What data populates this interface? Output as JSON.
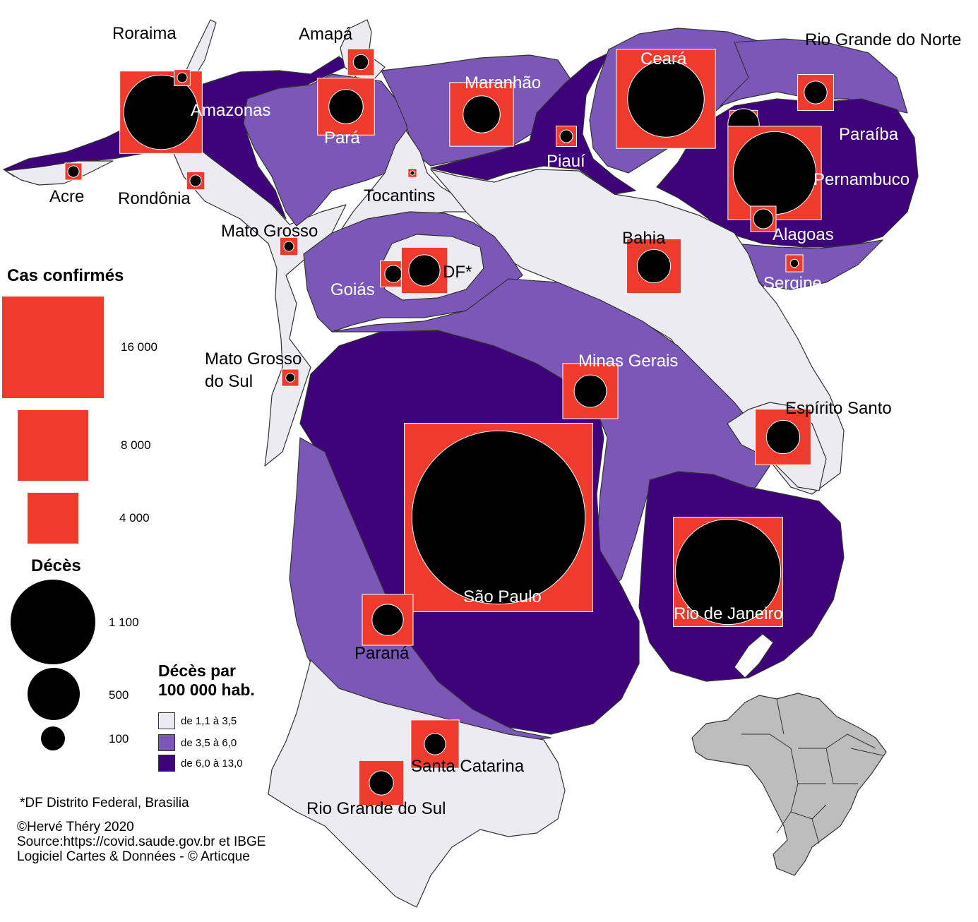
{
  "colors": {
    "low": "#ecebf2",
    "mid": "#7b58b8",
    "high": "#3e027a",
    "case_square": "#ee3b2d",
    "death_circle": "#000000",
    "minimap": "#bdbdbd"
  },
  "map": {
    "states": [
      {
        "id": "amazonas",
        "name": "Amazonas",
        "class": "high",
        "label_color": "light"
      },
      {
        "id": "roraima",
        "name": "Roraima",
        "class": "low",
        "label_color": "dark"
      },
      {
        "id": "acre",
        "name": "Acre",
        "class": "low",
        "label_color": "dark"
      },
      {
        "id": "rondonia",
        "name": "Rondônia",
        "class": "low",
        "label_color": "dark"
      },
      {
        "id": "amapa",
        "name": "Amapá",
        "class": "low",
        "label_color": "dark"
      },
      {
        "id": "para",
        "name": "Pará",
        "class": "mid",
        "label_color": "light"
      },
      {
        "id": "maranhao",
        "name": "Maranhão",
        "class": "mid",
        "label_color": "light"
      },
      {
        "id": "piaui",
        "name": "Piauí",
        "class": "high",
        "label_color": "light"
      },
      {
        "id": "ceara",
        "name": "Ceará",
        "class": "mid",
        "label_color": "light"
      },
      {
        "id": "rio-grande-do-norte",
        "name": "Rio Grande do Norte",
        "class": "mid",
        "label_color": "dark"
      },
      {
        "id": "paraiba",
        "name": "Paraíba",
        "class": "high",
        "label_color": "light"
      },
      {
        "id": "pernambuco",
        "name": "Pernambuco",
        "class": "high",
        "label_color": "light"
      },
      {
        "id": "alagoas",
        "name": "Alagoas",
        "class": "high",
        "label_color": "light"
      },
      {
        "id": "sergipe",
        "name": "Sergipe",
        "class": "mid",
        "label_color": "light"
      },
      {
        "id": "tocantins",
        "name": "Tocantins",
        "class": "low",
        "label_color": "dark"
      },
      {
        "id": "bahia",
        "name": "Bahia",
        "class": "low",
        "label_color": "dark"
      },
      {
        "id": "mato-grosso",
        "name": "Mato Grosso",
        "class": "low",
        "label_color": "dark"
      },
      {
        "id": "goias",
        "name": "Goiás",
        "class": "mid",
        "label_color": "light"
      },
      {
        "id": "df",
        "name": "DF*",
        "class": "low",
        "label_color": "dark"
      },
      {
        "id": "mato-grosso-do-sul-line1",
        "name": "Mato Grosso",
        "class": "low",
        "label_color": "dark"
      },
      {
        "id": "mato-grosso-do-sul-line2",
        "name": "do Sul",
        "class": "low",
        "label_color": "dark"
      },
      {
        "id": "minas-gerais",
        "name": "Minas Gerais",
        "class": "mid",
        "label_color": "light"
      },
      {
        "id": "espirito-santo",
        "name": "Espírito Santo",
        "class": "low",
        "label_color": "dark"
      },
      {
        "id": "sao-paulo",
        "name": "São Paulo",
        "class": "high",
        "label_color": "light"
      },
      {
        "id": "rio-de-janeiro",
        "name": "Rio de Janeiro",
        "class": "high",
        "label_color": "light"
      },
      {
        "id": "parana",
        "name": "Paraná",
        "class": "mid",
        "label_color": "dark"
      },
      {
        "id": "santa-catarina",
        "name": "Santa Catarina",
        "class": "low",
        "label_color": "dark"
      },
      {
        "id": "rio-grande-do-sul",
        "name": "Rio Grande do Sul",
        "class": "low",
        "label_color": "dark"
      }
    ],
    "symbols": [
      {
        "state": "Amazonas",
        "cases": 10500,
        "deaths": 850
      },
      {
        "state": "Roraima",
        "cases": 400,
        "deaths": 15
      },
      {
        "state": "Acre",
        "cases": 450,
        "deaths": 20
      },
      {
        "state": "Rondônia",
        "cases": 500,
        "deaths": 20
      },
      {
        "state": "Amapá",
        "cases": 1100,
        "deaths": 35
      },
      {
        "state": "Pará",
        "cases": 5000,
        "deaths": 180
      },
      {
        "state": "Maranhão",
        "cases": 6300,
        "deaths": 210
      },
      {
        "state": "Piauí",
        "cases": 650,
        "deaths": 25
      },
      {
        "state": "Ceará",
        "cases": 15200,
        "deaths": 900
      },
      {
        "state": "Rio Grande do Norte",
        "cases": 2000,
        "deaths": 80
      },
      {
        "state": "Paraíba",
        "cases": 1200,
        "deaths": 150
      },
      {
        "state": "Pernambuco",
        "cases": 13500,
        "deaths": 1050
      },
      {
        "state": "Alagoas",
        "cases": 1000,
        "deaths": 60
      },
      {
        "state": "Sergipe",
        "cases": 450,
        "deaths": 10
      },
      {
        "state": "Tocantins",
        "cases": 120,
        "deaths": 3
      },
      {
        "state": "Bahia",
        "cases": 4600,
        "deaths": 170
      },
      {
        "state": "Mato Grosso",
        "cases": 500,
        "deaths": 15
      },
      {
        "state": "Goiás",
        "cases": 1050,
        "deaths": 45
      },
      {
        "state": "DF*",
        "cases": 3300,
        "deaths": 150
      },
      {
        "state": "Mato Grosso do Sul",
        "cases": 450,
        "deaths": 12
      },
      {
        "state": "Minas Gerais",
        "cases": 4700,
        "deaths": 160
      },
      {
        "state": "Espírito Santo",
        "cases": 4800,
        "deaths": 170
      },
      {
        "state": "São Paulo",
        "cases": 55000,
        "deaths": 4600
      },
      {
        "state": "Rio de Janeiro",
        "cases": 18500,
        "deaths": 1700
      },
      {
        "state": "Paraná",
        "cases": 4000,
        "deaths": 150
      },
      {
        "state": "Santa Catarina",
        "cases": 3600,
        "deaths": 70
      },
      {
        "state": "Rio Grande do Sul",
        "cases": 3100,
        "deaths": 90
      }
    ]
  },
  "legend": {
    "cases_title": "Cas confirmés",
    "cases_values": [
      "16 000",
      "8 000",
      "4 000"
    ],
    "deaths_title": "Décès",
    "deaths_values": [
      "1 100",
      "500",
      "100"
    ],
    "rate_title_line1": "Décès par",
    "rate_title_line2": "100 000 hab.",
    "rate_classes": [
      "de 1,1 à 3,5",
      "de 3,5 à 6,0",
      "de 6,0 à 13,0"
    ]
  },
  "footnote": "*DF Distrito Federal, Brasilia",
  "credits": {
    "line1": "©Hervé Théry 2020",
    "line2": "Source:https://covid.saude.gov.br et IBGE",
    "line3": "Logiciel Cartes & Données - © Articque"
  }
}
